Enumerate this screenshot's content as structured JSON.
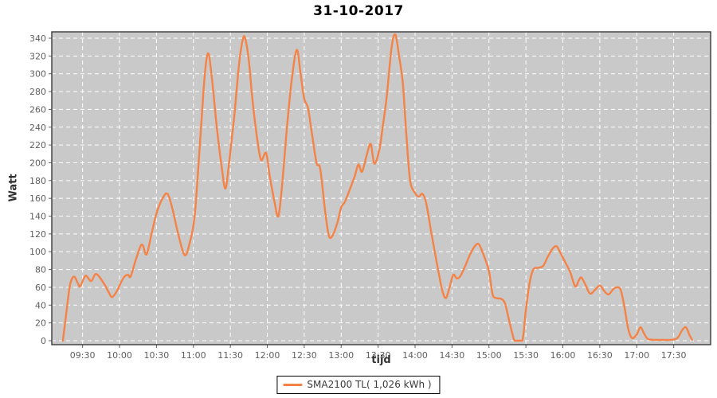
{
  "title": "31-10-2017",
  "colors": {
    "series": "#F58246",
    "plot_background": "#C9C9C9",
    "grid": "#FFFFFF",
    "outline": "#3A3A3A",
    "tick_label": "#5F5F5F",
    "title": "#000000"
  },
  "legend": {
    "label": "SMA2100 TL( 1,026 kWh )"
  },
  "chart_data": {
    "type": "line",
    "title": "31-10-2017",
    "xlabel": "tijd",
    "ylabel": "Watt",
    "ylim": [
      0,
      350
    ],
    "y_ticks": [
      0,
      20,
      40,
      60,
      80,
      100,
      120,
      140,
      160,
      180,
      200,
      220,
      240,
      260,
      280,
      300,
      320,
      340
    ],
    "x_ticks": [
      "09:30",
      "10:00",
      "10:30",
      "11:00",
      "11:30",
      "12:00",
      "12:30",
      "13:00",
      "13:30",
      "14:00",
      "14:30",
      "15:00",
      "15:30",
      "16:00",
      "16:30",
      "17:00",
      "17:30"
    ],
    "x_domain": [
      "09:05",
      "18:00"
    ],
    "grid": true,
    "grid_style": "white-dashed",
    "legend_position": "bottom-center",
    "series": [
      {
        "name": "SMA2100 TL( 1,026 kWh )",
        "color": "#F58246",
        "points": [
          [
            "09:14",
            0
          ],
          [
            "09:16",
            22
          ],
          [
            "09:18",
            45
          ],
          [
            "09:20",
            64
          ],
          [
            "09:23",
            72
          ],
          [
            "09:26",
            65
          ],
          [
            "09:28",
            61
          ],
          [
            "09:31",
            70
          ],
          [
            "09:33",
            73
          ],
          [
            "09:37",
            67
          ],
          [
            "09:41",
            75
          ],
          [
            "09:47",
            65
          ],
          [
            "09:51",
            55
          ],
          [
            "09:54",
            49
          ],
          [
            "09:58",
            56
          ],
          [
            "10:01",
            65
          ],
          [
            "10:04",
            72
          ],
          [
            "10:07",
            74
          ],
          [
            "10:09",
            72
          ],
          [
            "10:13",
            90
          ],
          [
            "10:17",
            106
          ],
          [
            "10:19",
            107
          ],
          [
            "10:22",
            97
          ],
          [
            "10:26",
            120
          ],
          [
            "10:30",
            143
          ],
          [
            "10:35",
            160
          ],
          [
            "10:39",
            165
          ],
          [
            "10:43",
            148
          ],
          [
            "10:48",
            118
          ],
          [
            "10:53",
            96
          ],
          [
            "10:57",
            110
          ],
          [
            "11:01",
            140
          ],
          [
            "11:05",
            215
          ],
          [
            "11:09",
            295
          ],
          [
            "11:12",
            323
          ],
          [
            "11:15",
            295
          ],
          [
            "11:19",
            240
          ],
          [
            "11:23",
            195
          ],
          [
            "11:26",
            171
          ],
          [
            "11:29",
            200
          ],
          [
            "11:33",
            250
          ],
          [
            "11:37",
            310
          ],
          [
            "11:40",
            338
          ],
          [
            "11:42",
            340
          ],
          [
            "11:45",
            315
          ],
          [
            "11:48",
            270
          ],
          [
            "11:52",
            225
          ],
          [
            "11:55",
            203
          ],
          [
            "11:59",
            211
          ],
          [
            "12:02",
            185
          ],
          [
            "12:06",
            155
          ],
          [
            "12:09",
            140
          ],
          [
            "12:12",
            175
          ],
          [
            "12:16",
            240
          ],
          [
            "12:20",
            295
          ],
          [
            "12:24",
            327
          ],
          [
            "12:27",
            300
          ],
          [
            "12:30",
            272
          ],
          [
            "12:33",
            262
          ],
          [
            "12:36",
            235
          ],
          [
            "12:40",
            200
          ],
          [
            "12:43",
            193
          ],
          [
            "12:47",
            145
          ],
          [
            "12:50",
            118
          ],
          [
            "12:53",
            118
          ],
          [
            "12:57",
            133
          ],
          [
            "13:00",
            150
          ],
          [
            "13:03",
            156
          ],
          [
            "13:07",
            170
          ],
          [
            "13:11",
            185
          ],
          [
            "13:14",
            198
          ],
          [
            "13:17",
            190
          ],
          [
            "13:21",
            210
          ],
          [
            "13:24",
            221
          ],
          [
            "13:27",
            199
          ],
          [
            "13:31",
            215
          ],
          [
            "13:34",
            243
          ],
          [
            "13:37",
            275
          ],
          [
            "13:41",
            330
          ],
          [
            "13:44",
            344
          ],
          [
            "13:47",
            320
          ],
          [
            "13:50",
            290
          ],
          [
            "13:53",
            230
          ],
          [
            "13:56",
            180
          ],
          [
            "14:00",
            166
          ],
          [
            "14:03",
            162
          ],
          [
            "14:06",
            165
          ],
          [
            "14:09",
            155
          ],
          [
            "14:13",
            123
          ],
          [
            "14:18",
            85
          ],
          [
            "14:22",
            57
          ],
          [
            "14:25",
            48
          ],
          [
            "14:28",
            60
          ],
          [
            "14:31",
            74
          ],
          [
            "14:34",
            70
          ],
          [
            "14:37",
            73
          ],
          [
            "14:41",
            85
          ],
          [
            "14:45",
            98
          ],
          [
            "14:49",
            107
          ],
          [
            "14:52",
            108
          ],
          [
            "14:56",
            95
          ],
          [
            "15:00",
            78
          ],
          [
            "15:03",
            52
          ],
          [
            "15:06",
            48
          ],
          [
            "15:10",
            47
          ],
          [
            "15:13",
            42
          ],
          [
            "15:16",
            25
          ],
          [
            "15:19",
            8
          ],
          [
            "15:21",
            0
          ],
          [
            "15:27",
            0
          ],
          [
            "15:30",
            35
          ],
          [
            "15:33",
            65
          ],
          [
            "15:36",
            80
          ],
          [
            "15:40",
            82
          ],
          [
            "15:44",
            84
          ],
          [
            "15:48",
            95
          ],
          [
            "15:52",
            104
          ],
          [
            "15:55",
            106
          ],
          [
            "15:58",
            99
          ],
          [
            "16:02",
            88
          ],
          [
            "16:06",
            77
          ],
          [
            "16:10",
            61
          ],
          [
            "16:13",
            68
          ],
          [
            "16:15",
            71
          ],
          [
            "16:18",
            64
          ],
          [
            "16:22",
            53
          ],
          [
            "16:26",
            57
          ],
          [
            "16:30",
            62
          ],
          [
            "16:33",
            57
          ],
          [
            "16:37",
            52
          ],
          [
            "16:41",
            58
          ],
          [
            "16:44",
            60
          ],
          [
            "16:47",
            57
          ],
          [
            "16:50",
            38
          ],
          [
            "16:53",
            14
          ],
          [
            "16:56",
            3
          ],
          [
            "17:00",
            7
          ],
          [
            "17:03",
            15
          ],
          [
            "17:06",
            8
          ],
          [
            "17:09",
            2
          ],
          [
            "17:15",
            1
          ],
          [
            "17:22",
            1
          ],
          [
            "17:28",
            1
          ],
          [
            "17:33",
            3
          ],
          [
            "17:37",
            12
          ],
          [
            "17:40",
            15
          ],
          [
            "17:43",
            6
          ],
          [
            "17:45",
            1
          ]
        ]
      }
    ]
  }
}
